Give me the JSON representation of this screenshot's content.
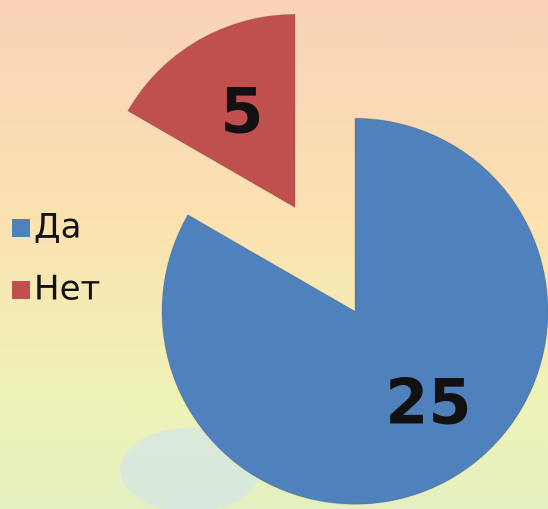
{
  "chart_data": {
    "type": "pie",
    "categories": [
      "Да",
      "Нет"
    ],
    "values": [
      25,
      5
    ],
    "colors": [
      "#4f81bd",
      "#c0504d"
    ],
    "legend": "left"
  }
}
